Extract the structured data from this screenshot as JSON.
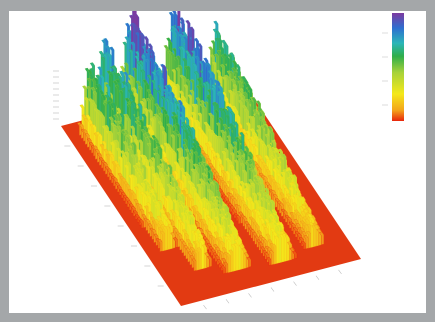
{
  "chart_data": {
    "type": "surface3d",
    "title": "",
    "xlabel": "",
    "ylabel": "",
    "zlabel": "",
    "description_ridges": [
      {
        "name": "",
        "peak": 1.0
      },
      {
        "name": "",
        "peak": 0.95
      },
      {
        "name": "",
        "peak": 0.8
      },
      {
        "name": "",
        "peak": 0.75
      },
      {
        "name": "",
        "peak": 0.7
      }
    ],
    "colorscale": [
      "#e8250c",
      "#f3a41a",
      "#f5e81a",
      "#a6d23a",
      "#2fae4a",
      "#2bb6b8",
      "#2e6fd0",
      "#7c3aa0"
    ],
    "colorbar_ticks": [
      "",
      "",
      "",
      ""
    ],
    "z_ticks": [
      "",
      "",
      "",
      "",
      "",
      "",
      "",
      "",
      ""
    ],
    "y_ticks": [
      "",
      "",
      "",
      "",
      "",
      "",
      "",
      ""
    ],
    "x_ticks": [
      "",
      "",
      "",
      "",
      "",
      "",
      ""
    ]
  }
}
